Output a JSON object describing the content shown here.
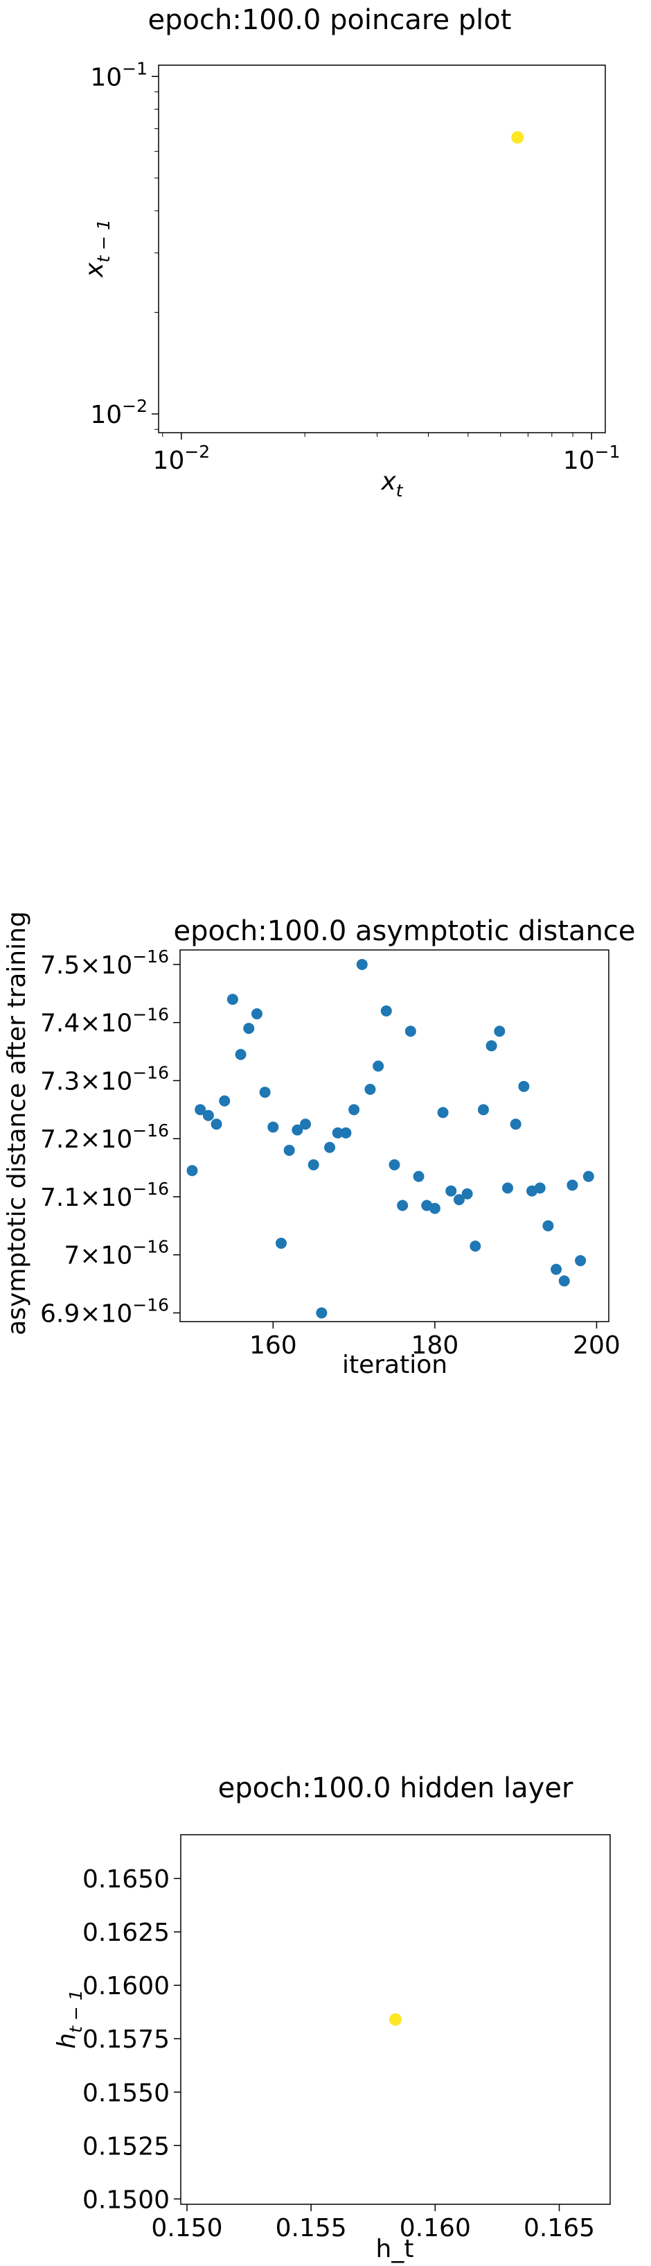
{
  "chart_data": [
    {
      "type": "scatter",
      "title": "epoch:100.0 poincare plot",
      "xlabel": "x_t",
      "ylabel": "x_{t-1}",
      "xscale": "log",
      "yscale": "log",
      "xlim": [
        0.0088,
        0.108
      ],
      "ylim": [
        0.0088,
        0.108
      ],
      "x_ticks": [
        "10^-2",
        "10^-1"
      ],
      "y_ticks": [
        "10^-2",
        "10^-1"
      ],
      "marker_color": "#fde725",
      "points": [
        {
          "x": 0.066,
          "y": 0.066
        }
      ]
    },
    {
      "type": "scatter",
      "title": "epoch:100.0 asymptotic distance",
      "xlabel": "iteration",
      "ylabel": "asymptotic distance after training",
      "xlim": [
        148.5,
        201.5
      ],
      "ylim": [
        6.885e-16,
        7.525e-16
      ],
      "x_ticks": [
        "160",
        "180",
        "200"
      ],
      "y_ticks": [
        "6.9×10^-16",
        "7×10^-16",
        "7.1×10^-16",
        "7.2×10^-16",
        "7.3×10^-16",
        "7.4×10^-16",
        "7.5×10^-16"
      ],
      "marker_color": "#1f77b4",
      "x": [
        150,
        151,
        152,
        153,
        154,
        155,
        156,
        157,
        158,
        159,
        160,
        161,
        162,
        163,
        164,
        165,
        166,
        167,
        168,
        169,
        170,
        171,
        172,
        173,
        174,
        175,
        176,
        177,
        178,
        179,
        180,
        181,
        182,
        183,
        184,
        185,
        186,
        187,
        188,
        189,
        190,
        191,
        192,
        193,
        194,
        195,
        196,
        197,
        198,
        199
      ],
      "y": [
        7.145e-16,
        7.25e-16,
        7.24e-16,
        7.225e-16,
        7.265e-16,
        7.44e-16,
        7.345e-16,
        7.39e-16,
        7.415e-16,
        7.28e-16,
        7.22e-16,
        7.02e-16,
        7.18e-16,
        7.215e-16,
        7.225e-16,
        7.155e-16,
        6.9e-16,
        7.185e-16,
        7.21e-16,
        7.21e-16,
        7.25e-16,
        7.5e-16,
        7.285e-16,
        7.325e-16,
        7.42e-16,
        7.155e-16,
        7.085e-16,
        7.385e-16,
        7.135e-16,
        7.085e-16,
        7.08e-16,
        7.245e-16,
        7.11e-16,
        7.095e-16,
        7.105e-16,
        7.015e-16,
        7.25e-16,
        7.36e-16,
        7.385e-16,
        7.115e-16,
        7.225e-16,
        7.29e-16,
        7.11e-16,
        7.115e-16,
        7.05e-16,
        6.975e-16,
        6.955e-16,
        7.12e-16,
        6.99e-16,
        7.135e-16
      ]
    },
    {
      "type": "scatter",
      "title": "epoch:100.0 hidden layer",
      "xlabel": "h_t",
      "ylabel": "h_{t-1}",
      "xlim": [
        0.14975,
        0.16705
      ],
      "ylim": [
        0.14975,
        0.16705
      ],
      "x_ticks": [
        "0.150",
        "0.155",
        "0.160",
        "0.165"
      ],
      "y_ticks": [
        "0.1500",
        "0.1525",
        "0.1550",
        "0.1575",
        "0.1600",
        "0.1625",
        "0.1650"
      ],
      "marker_color": "#fde725",
      "points": [
        {
          "x": 0.1584,
          "y": 0.1584
        }
      ]
    }
  ]
}
